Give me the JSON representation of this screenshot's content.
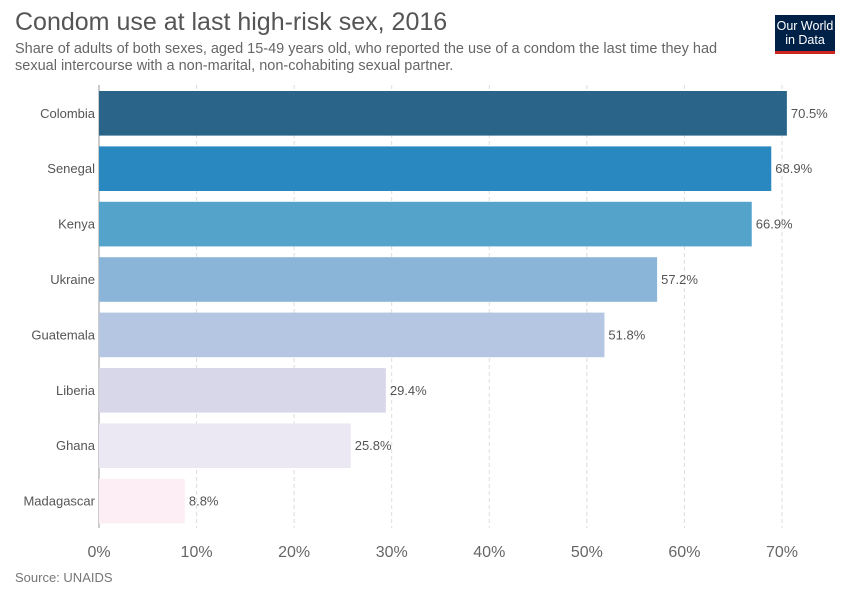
{
  "header": {
    "title": "Condom use at last high-risk sex, 2016",
    "subtitle": "Share of adults of both sexes, aged 15-49 years old, who reported the use of a condom the last time they had sexual intercourse with a non-marital, non-cohabiting sexual partner.",
    "logo_line1": "Our World",
    "logo_line2": "in Data",
    "logo_bg": "#002147",
    "logo_accent": "#ce261e"
  },
  "footer": {
    "source": "Source: UNAIDS"
  },
  "chart_data": {
    "type": "bar",
    "orientation": "horizontal",
    "categories": [
      "Colombia",
      "Senegal",
      "Kenya",
      "Ukraine",
      "Guatemala",
      "Liberia",
      "Ghana",
      "Madagascar"
    ],
    "values": [
      70.5,
      68.9,
      66.9,
      57.2,
      51.8,
      29.4,
      25.8,
      8.8
    ],
    "value_labels": [
      "70.5%",
      "68.9%",
      "66.9%",
      "57.2%",
      "51.8%",
      "29.4%",
      "25.8%",
      "8.8%"
    ],
    "colors": [
      "#2a6589",
      "#2a88c0",
      "#53a3cb",
      "#8ab5d8",
      "#b4c6e2",
      "#d8d7ea",
      "#ebe8f4",
      "#fdeef6"
    ],
    "xlim": [
      0,
      70
    ],
    "x_ticks": [
      0,
      10,
      20,
      30,
      40,
      50,
      60,
      70
    ],
    "x_tick_labels": [
      "0%",
      "10%",
      "20%",
      "30%",
      "40%",
      "50%",
      "60%",
      "70%"
    ],
    "grid": true,
    "legend": "none"
  }
}
